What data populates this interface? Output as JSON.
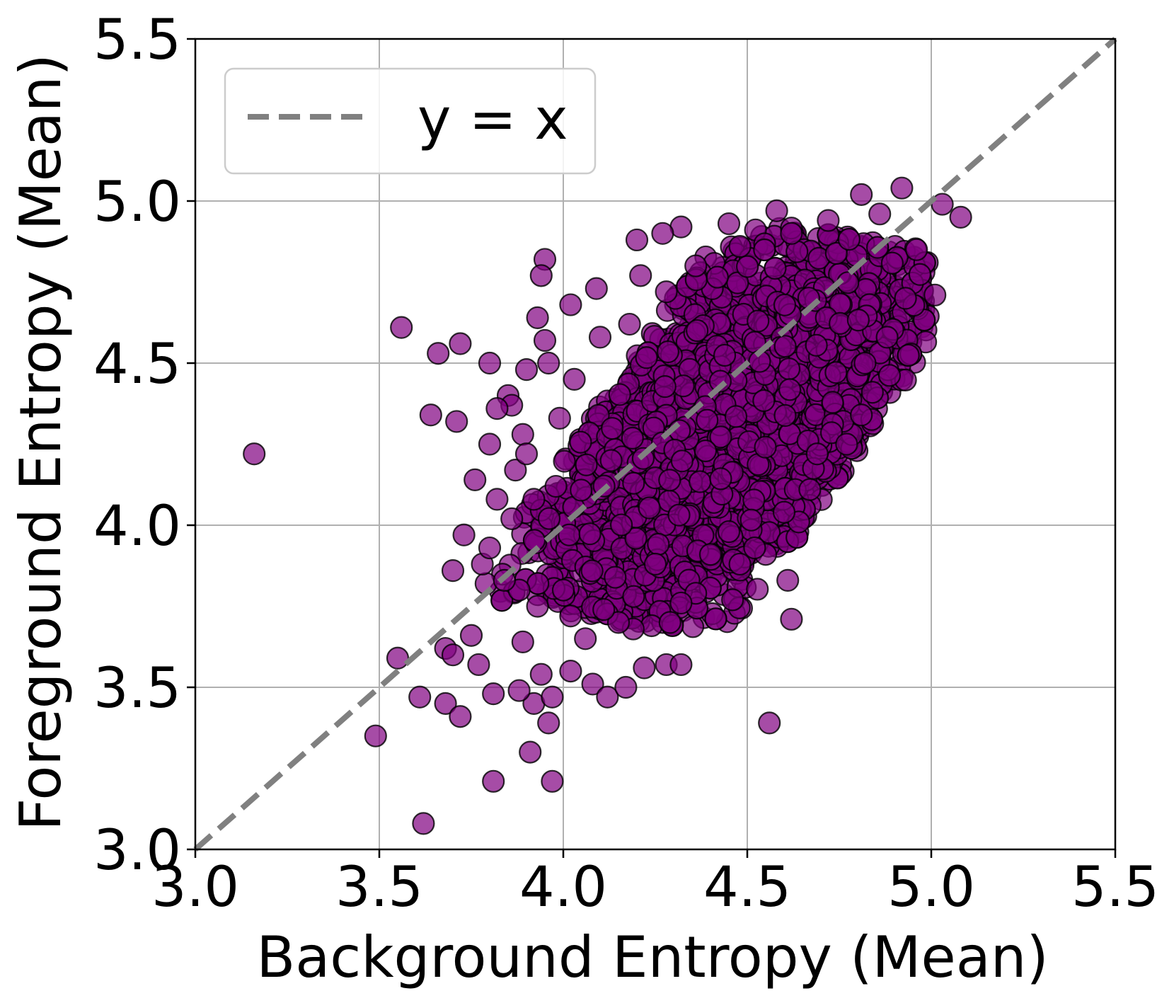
{
  "chart_data": {
    "type": "scatter",
    "title": "",
    "xlabel": "Background Entropy (Mean)",
    "ylabel": "Foreground Entropy (Mean)",
    "xlim": [
      3.0,
      5.5
    ],
    "ylim": [
      3.0,
      5.5
    ],
    "xticks": [
      "3.0",
      "3.5",
      "4.0",
      "4.5",
      "5.0",
      "5.5"
    ],
    "yticks": [
      "3.0",
      "3.5",
      "4.0",
      "4.5",
      "5.0",
      "5.5"
    ],
    "grid": true,
    "legend": {
      "position": "top-left",
      "entries": [
        "y = x"
      ]
    },
    "reference_line": {
      "label": "y = x",
      "from": [
        3.0,
        3.0
      ],
      "to": [
        5.5,
        5.5
      ],
      "style": "dashed",
      "color": "#808080"
    },
    "marker_color": "#800080",
    "marker_edge_color": "#000000",
    "cloud": {
      "center": [
        4.45,
        4.3
      ],
      "spread": [
        0.22,
        0.26
      ],
      "correlation": 0.62,
      "approx_count": 6000
    },
    "points": [
      [
        3.16,
        4.22
      ],
      [
        3.56,
        4.61
      ],
      [
        3.66,
        4.53
      ],
      [
        3.72,
        4.56
      ],
      [
        3.64,
        4.34
      ],
      [
        3.71,
        4.32
      ],
      [
        3.8,
        4.5
      ],
      [
        3.8,
        4.25
      ],
      [
        3.76,
        4.14
      ],
      [
        3.82,
        4.08
      ],
      [
        3.73,
        3.97
      ],
      [
        3.7,
        3.86
      ],
      [
        3.55,
        3.59
      ],
      [
        3.61,
        3.47
      ],
      [
        3.49,
        3.35
      ],
      [
        3.62,
        3.08
      ],
      [
        3.68,
        3.45
      ],
      [
        3.72,
        3.41
      ],
      [
        3.68,
        3.62
      ],
      [
        3.7,
        3.6
      ],
      [
        3.81,
        3.21
      ],
      [
        3.91,
        3.3
      ],
      [
        3.97,
        3.21
      ],
      [
        3.96,
        3.39
      ],
      [
        3.92,
        3.45
      ],
      [
        3.88,
        3.49
      ],
      [
        3.81,
        3.48
      ],
      [
        3.77,
        3.57
      ],
      [
        3.75,
        3.66
      ],
      [
        3.79,
        3.82
      ],
      [
        3.89,
        3.64
      ],
      [
        3.94,
        3.54
      ],
      [
        3.97,
        3.47
      ],
      [
        4.02,
        3.55
      ],
      [
        4.08,
        3.51
      ],
      [
        4.12,
        3.47
      ],
      [
        4.17,
        3.5
      ],
      [
        4.22,
        3.56
      ],
      [
        4.28,
        3.57
      ],
      [
        4.32,
        3.57
      ],
      [
        4.56,
        3.39
      ],
      [
        4.62,
        3.71
      ],
      [
        4.61,
        3.83
      ],
      [
        4.55,
        3.91
      ],
      [
        4.46,
        3.77
      ],
      [
        4.36,
        3.79
      ],
      [
        4.32,
        3.76
      ],
      [
        4.24,
        3.69
      ],
      [
        4.29,
        3.7
      ],
      [
        4.19,
        3.68
      ],
      [
        4.06,
        3.65
      ],
      [
        4.02,
        3.72
      ],
      [
        3.95,
        4.82
      ],
      [
        3.94,
        4.77
      ],
      [
        3.93,
        4.64
      ],
      [
        3.95,
        4.57
      ],
      [
        3.96,
        4.5
      ],
      [
        3.9,
        4.48
      ],
      [
        3.85,
        4.4
      ],
      [
        3.86,
        4.37
      ],
      [
        3.82,
        4.36
      ],
      [
        3.89,
        4.28
      ],
      [
        3.87,
        4.17
      ],
      [
        4.2,
        4.88
      ],
      [
        4.32,
        4.92
      ],
      [
        4.27,
        4.9
      ],
      [
        4.21,
        4.77
      ],
      [
        4.09,
        4.73
      ],
      [
        4.02,
        4.68
      ],
      [
        4.45,
        4.93
      ],
      [
        4.58,
        4.97
      ],
      [
        4.81,
        5.02
      ],
      [
        4.92,
        5.04
      ],
      [
        5.03,
        4.99
      ],
      [
        5.08,
        4.95
      ],
      [
        5.01,
        4.71
      ],
      [
        4.77,
        4.25
      ],
      [
        4.81,
        4.34
      ],
      [
        4.84,
        4.41
      ],
      [
        4.69,
        4.22
      ],
      [
        4.67,
        4.11
      ],
      [
        4.64,
        4.01
      ],
      [
        4.6,
        4.04
      ],
      [
        4.52,
        3.93
      ],
      [
        4.45,
        3.98
      ],
      [
        4.48,
        3.88
      ],
      [
        4.4,
        3.91
      ],
      [
        4.25,
        3.88
      ],
      [
        4.15,
        3.7
      ],
      [
        4.11,
        3.74
      ],
      [
        4.0,
        3.8
      ],
      [
        3.93,
        3.75
      ],
      [
        3.88,
        3.8
      ],
      [
        3.84,
        3.83
      ],
      [
        3.78,
        3.88
      ],
      [
        3.8,
        3.93
      ],
      [
        3.86,
        4.02
      ],
      [
        3.92,
        4.08
      ],
      [
        3.98,
        4.12
      ],
      [
        3.9,
        4.22
      ],
      [
        3.99,
        4.33
      ],
      [
        4.03,
        4.45
      ],
      [
        4.1,
        4.58
      ],
      [
        4.18,
        4.62
      ],
      [
        4.28,
        4.72
      ],
      [
        4.36,
        4.8
      ],
      [
        4.48,
        4.86
      ],
      [
        4.62,
        4.9
      ],
      [
        4.72,
        4.94
      ],
      [
        4.86,
        4.96
      ],
      [
        4.96,
        4.85
      ],
      [
        4.93,
        4.7
      ],
      [
        4.88,
        4.58
      ],
      [
        4.82,
        4.5
      ]
    ]
  }
}
